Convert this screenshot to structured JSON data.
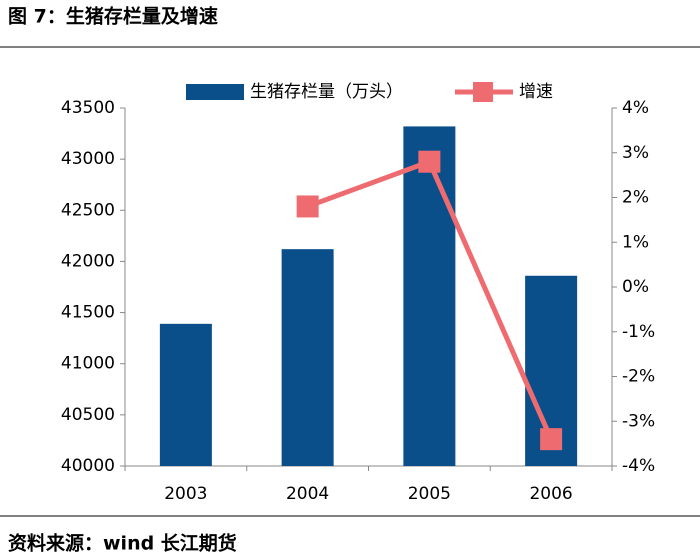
{
  "chart_data": {
    "type": "bar_line",
    "title": "图 7：生猪存栏量及增速",
    "source": "资料来源：wind  长江期货",
    "categories": [
      "2003",
      "2004",
      "2005",
      "2006"
    ],
    "series": [
      {
        "name": "生猪存栏量（万头）",
        "color": "#0b4f8a",
        "type": "bar",
        "values": [
          41390,
          42120,
          43320,
          41860
        ]
      },
      {
        "name": "增速",
        "color": "#ee6b70",
        "type": "line",
        "axis": "y2",
        "values": [
          null,
          1.8,
          2.8,
          -3.4
        ]
      }
    ],
    "ylim": [
      40000,
      43500
    ],
    "yticks": [
      40000,
      40500,
      41000,
      41500,
      42000,
      42500,
      43000,
      43500
    ],
    "y2lim": [
      -4,
      4
    ],
    "y2ticks": [
      {
        "value": -4,
        "label": "-4%"
      },
      {
        "value": -3,
        "label": "-3%"
      },
      {
        "value": -2,
        "label": "-2%"
      },
      {
        "value": -1,
        "label": "-1%"
      },
      {
        "value": 0,
        "label": "0%"
      },
      {
        "value": 1,
        "label": "1%"
      },
      {
        "value": 2,
        "label": "2%"
      },
      {
        "value": 3,
        "label": "3%"
      },
      {
        "value": 4,
        "label": "4%"
      }
    ],
    "grid": false,
    "legend": "top"
  }
}
